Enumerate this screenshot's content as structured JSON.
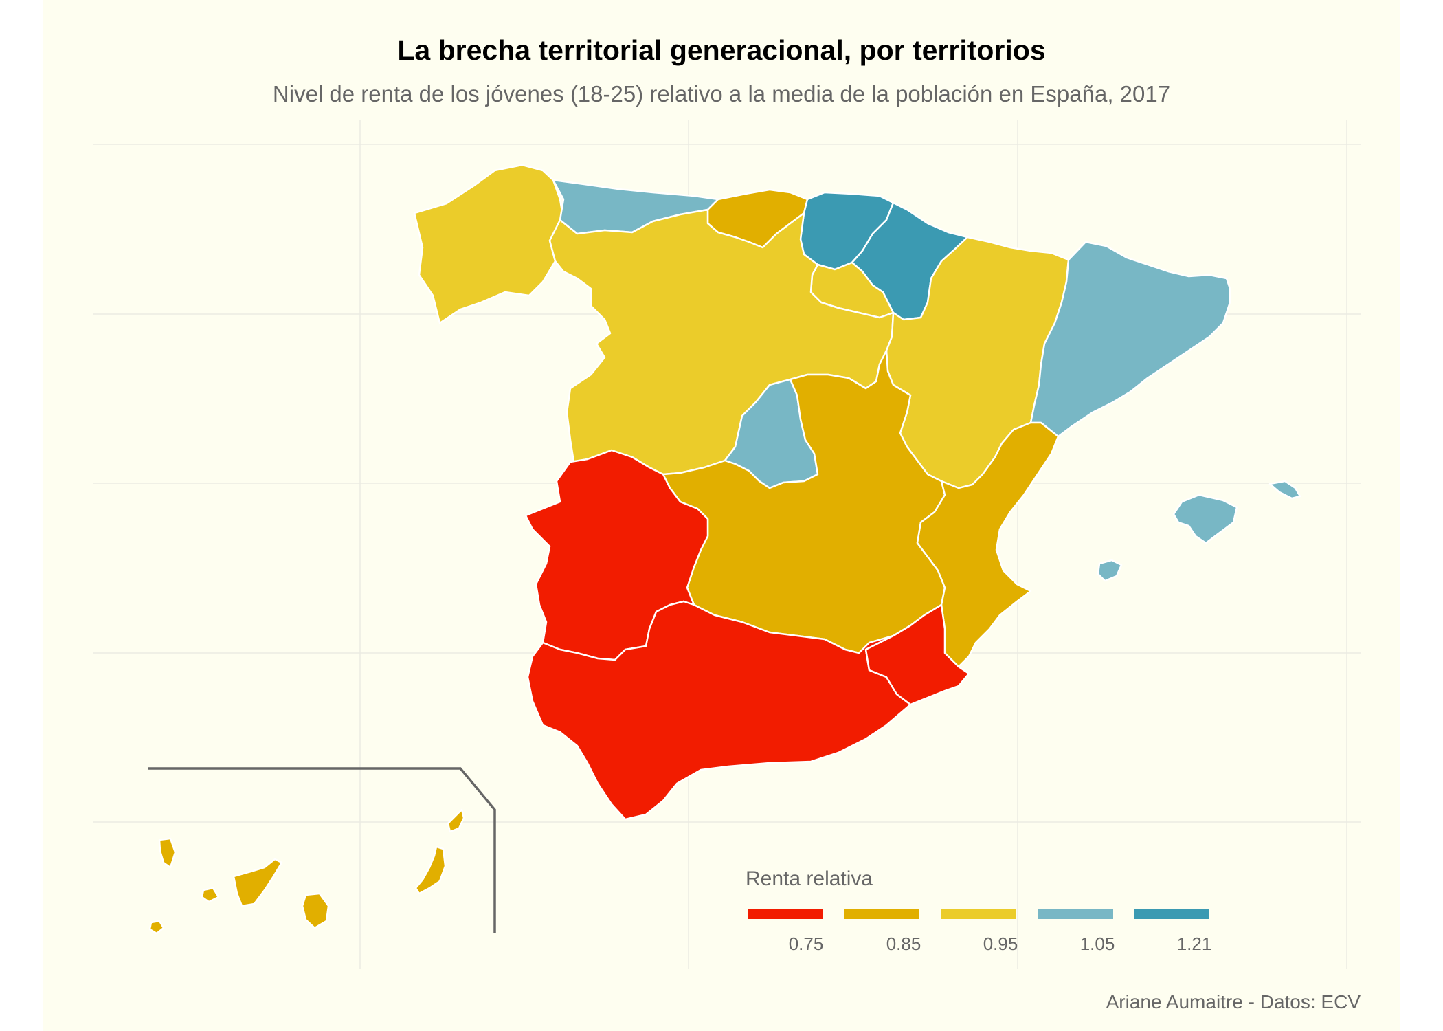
{
  "title": "La brecha territorial generacional, por territorios",
  "subtitle": "Nivel de renta de los jóvenes (18-25) relativo a la media de la población en España, 2017",
  "caption": "Ariane Aumaitre - Datos: ECV",
  "legend": {
    "title": "Renta relativa",
    "items": [
      {
        "label": "0.75",
        "color": "#f21c00"
      },
      {
        "label": "0.85",
        "color": "#e1af00"
      },
      {
        "label": "0.95",
        "color": "#ebcc2a"
      },
      {
        "label": "1.05",
        "color": "#78b7c5"
      },
      {
        "label": "1.21",
        "color": "#3b9ab2"
      }
    ]
  },
  "chart_data": {
    "type": "choropleth",
    "title": "La brecha territorial generacional, por territorios",
    "subtitle": "Nivel de renta de los jóvenes (18-25) relativo a la media de la población en España, 2017",
    "legend_title": "Renta relativa",
    "legend_placement": "bottom-right",
    "classes": [
      "0.75",
      "0.85",
      "0.95",
      "1.05",
      "1.21"
    ],
    "regions": [
      {
        "name": "Galicia",
        "class": "0.95"
      },
      {
        "name": "Asturias",
        "class": "1.05"
      },
      {
        "name": "Cantabria",
        "class": "0.85"
      },
      {
        "name": "País Vasco",
        "class": "1.21"
      },
      {
        "name": "Navarra",
        "class": "1.21"
      },
      {
        "name": "La Rioja",
        "class": "0.95"
      },
      {
        "name": "Aragón",
        "class": "0.95"
      },
      {
        "name": "Cataluña",
        "class": "1.05"
      },
      {
        "name": "Castilla y León",
        "class": "0.95"
      },
      {
        "name": "Madrid",
        "class": "1.05"
      },
      {
        "name": "Castilla-La Mancha",
        "class": "0.85"
      },
      {
        "name": "Comunidad Valenciana",
        "class": "0.85"
      },
      {
        "name": "Extremadura",
        "class": "0.75"
      },
      {
        "name": "Andalucía",
        "class": "0.75"
      },
      {
        "name": "Murcia",
        "class": "0.75"
      },
      {
        "name": "Islas Baleares",
        "class": "1.05"
      },
      {
        "name": "Canarias",
        "class": "0.85"
      }
    ]
  }
}
